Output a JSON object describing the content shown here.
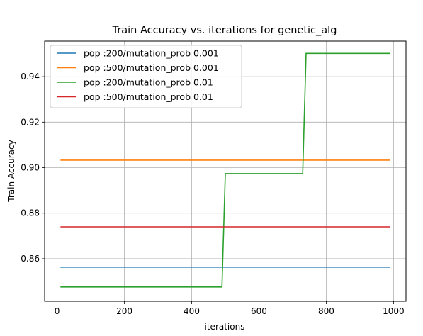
{
  "chart_data": {
    "type": "line",
    "title": "Train Accuracy vs. iterations for genetic_alg",
    "xlabel": "iterations",
    "ylabel": "Train Accuracy",
    "xlim": [
      -37,
      1037
    ],
    "ylim": [
      0.8413,
      0.9556
    ],
    "xticks": [
      0,
      200,
      400,
      600,
      800,
      1000
    ],
    "yticks": [
      0.86,
      0.88,
      0.9,
      0.92,
      0.94
    ],
    "ytick_labels": [
      "0.86",
      "0.88",
      "0.90",
      "0.92",
      "0.94"
    ],
    "grid": true,
    "legend_position": "top-left",
    "series": [
      {
        "name": "pop :200/mutation_prob 0.001",
        "color": "#1f77b4",
        "x": [
          10,
          990
        ],
        "y": [
          0.8563,
          0.8563
        ]
      },
      {
        "name": "pop :500/mutation_prob 0.001",
        "color": "#ff7f0e",
        "x": [
          10,
          990
        ],
        "y": [
          0.9033,
          0.9033
        ]
      },
      {
        "name": "pop :200/mutation_prob 0.01",
        "color": "#2ca02c",
        "x": [
          10,
          490,
          500,
          730,
          740,
          990
        ],
        "y": [
          0.8476,
          0.8476,
          0.8974,
          0.8974,
          0.9502,
          0.9502
        ]
      },
      {
        "name": "pop :500/mutation_prob 0.01",
        "color": "#d62728",
        "x": [
          10,
          990
        ],
        "y": [
          0.874,
          0.874
        ]
      }
    ]
  }
}
